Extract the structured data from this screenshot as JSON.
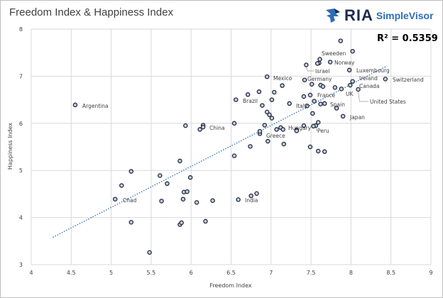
{
  "logo": {
    "brand": "RIA",
    "product": "SimpleVisor"
  },
  "chart_data": {
    "type": "scatter",
    "title": "Freedom Index & Happiness Index",
    "xlabel": "Freedom Index",
    "ylabel": "Happiness Index",
    "xlim": [
      4,
      9
    ],
    "ylim": [
      3,
      8
    ],
    "xticks": [
      "4",
      "4.5",
      "5",
      "5.5",
      "6",
      "6.5",
      "7",
      "7.5",
      "8",
      "8.5",
      "9"
    ],
    "yticks": [
      "3",
      "4",
      "5",
      "6",
      "7",
      "8"
    ],
    "grid": true,
    "annotation": "R² = 0.5359",
    "trendline": {
      "style": "dotted linear",
      "from": [
        4.27,
        3.58
      ],
      "to": [
        8.43,
        7.2
      ]
    },
    "colors": {
      "marker_edge": "#1f2a44",
      "marker_fill": "#c8cdd6",
      "trend": "#2f6db5"
    },
    "points": [
      [
        4.55,
        6.39,
        "Argentina"
      ],
      [
        5.05,
        4.39,
        "Chad"
      ],
      [
        6.59,
        4.38,
        "India"
      ],
      [
        6.15,
        5.96,
        "China"
      ],
      [
        7.61,
        7.36,
        "Sweeden"
      ],
      [
        7.74,
        7.3,
        "Norway"
      ],
      [
        7.44,
        7.24,
        "Israel"
      ],
      [
        7.98,
        7.13,
        "Luxembourg"
      ],
      [
        8.43,
        6.94,
        "Switzerland"
      ],
      [
        6.95,
        6.99,
        "Mexico"
      ],
      [
        8.02,
        6.89,
        "Ireland"
      ],
      [
        7.99,
        6.81,
        "Canada"
      ],
      [
        7.88,
        6.73,
        "UK"
      ],
      [
        7.8,
        6.76,
        "Germany"
      ],
      [
        8.09,
        6.72,
        "United States"
      ],
      [
        6.56,
        6.5,
        "Brazil"
      ],
      [
        7.49,
        6.6,
        "France"
      ],
      [
        7.62,
        6.41,
        "Spain"
      ],
      [
        7.45,
        6.37,
        "Italy"
      ],
      [
        7.9,
        6.15,
        "Japan"
      ],
      [
        7.32,
        5.86,
        "Hungary"
      ],
      [
        7.56,
        5.95,
        "Peru"
      ],
      [
        6.86,
        5.78,
        "Greece"
      ],
      [
        5.93,
        5.95,
        ""
      ],
      [
        6.15,
        5.92,
        ""
      ],
      [
        6.11,
        5.87,
        ""
      ],
      [
        6.54,
        6.0,
        ""
      ],
      [
        6.54,
        5.31,
        ""
      ],
      [
        5.86,
        5.2,
        ""
      ],
      [
        5.25,
        4.98,
        ""
      ],
      [
        5.61,
        4.89,
        ""
      ],
      [
        5.99,
        4.85,
        ""
      ],
      [
        5.13,
        4.68,
        ""
      ],
      [
        5.7,
        4.72,
        ""
      ],
      [
        5.91,
        4.54,
        ""
      ],
      [
        5.95,
        4.55,
        ""
      ],
      [
        5.63,
        4.35,
        ""
      ],
      [
        5.9,
        4.39,
        ""
      ],
      [
        6.07,
        4.32,
        ""
      ],
      [
        6.27,
        4.36,
        ""
      ],
      [
        5.25,
        3.9,
        ""
      ],
      [
        5.86,
        3.85,
        ""
      ],
      [
        5.88,
        3.89,
        ""
      ],
      [
        6.18,
        3.92,
        ""
      ],
      [
        5.48,
        3.26,
        ""
      ],
      [
        6.92,
        5.96,
        ""
      ],
      [
        6.86,
        5.83,
        ""
      ],
      [
        7.07,
        5.87,
        ""
      ],
      [
        7.12,
        5.91,
        ""
      ],
      [
        7.15,
        5.87,
        ""
      ],
      [
        7.32,
        5.84,
        ""
      ],
      [
        7.41,
        5.95,
        ""
      ],
      [
        7.53,
        5.94,
        ""
      ],
      [
        7.59,
        6.02,
        ""
      ],
      [
        7.52,
        6.21,
        ""
      ],
      [
        6.96,
        5.62,
        ""
      ],
      [
        6.74,
        5.51,
        ""
      ],
      [
        7.16,
        5.56,
        ""
      ],
      [
        7.49,
        5.5,
        ""
      ],
      [
        7.59,
        5.41,
        ""
      ],
      [
        7.67,
        5.4,
        ""
      ],
      [
        6.75,
        4.46,
        ""
      ],
      [
        6.82,
        4.51,
        ""
      ],
      [
        7.87,
        7.75,
        ""
      ],
      [
        8.02,
        7.53,
        ""
      ],
      [
        7.6,
        7.28,
        ""
      ],
      [
        7.58,
        7.27,
        ""
      ],
      [
        7.42,
        6.92,
        ""
      ],
      [
        7.51,
        6.83,
        ""
      ],
      [
        7.62,
        6.81,
        ""
      ],
      [
        7.65,
        6.78,
        ""
      ],
      [
        7.14,
        6.8,
        ""
      ],
      [
        6.85,
        6.67,
        ""
      ],
      [
        7.04,
        6.66,
        ""
      ],
      [
        6.71,
        6.61,
        ""
      ],
      [
        7.01,
        6.5,
        ""
      ],
      [
        7.41,
        6.57,
        ""
      ],
      [
        7.54,
        6.47,
        ""
      ],
      [
        7.67,
        6.42,
        ""
      ],
      [
        7.23,
        6.42,
        ""
      ],
      [
        7.82,
        6.32,
        ""
      ],
      [
        6.89,
        6.38,
        ""
      ],
      [
        6.95,
        6.24,
        ""
      ],
      [
        6.98,
        6.18,
        ""
      ],
      [
        7.01,
        6.11,
        ""
      ]
    ]
  }
}
